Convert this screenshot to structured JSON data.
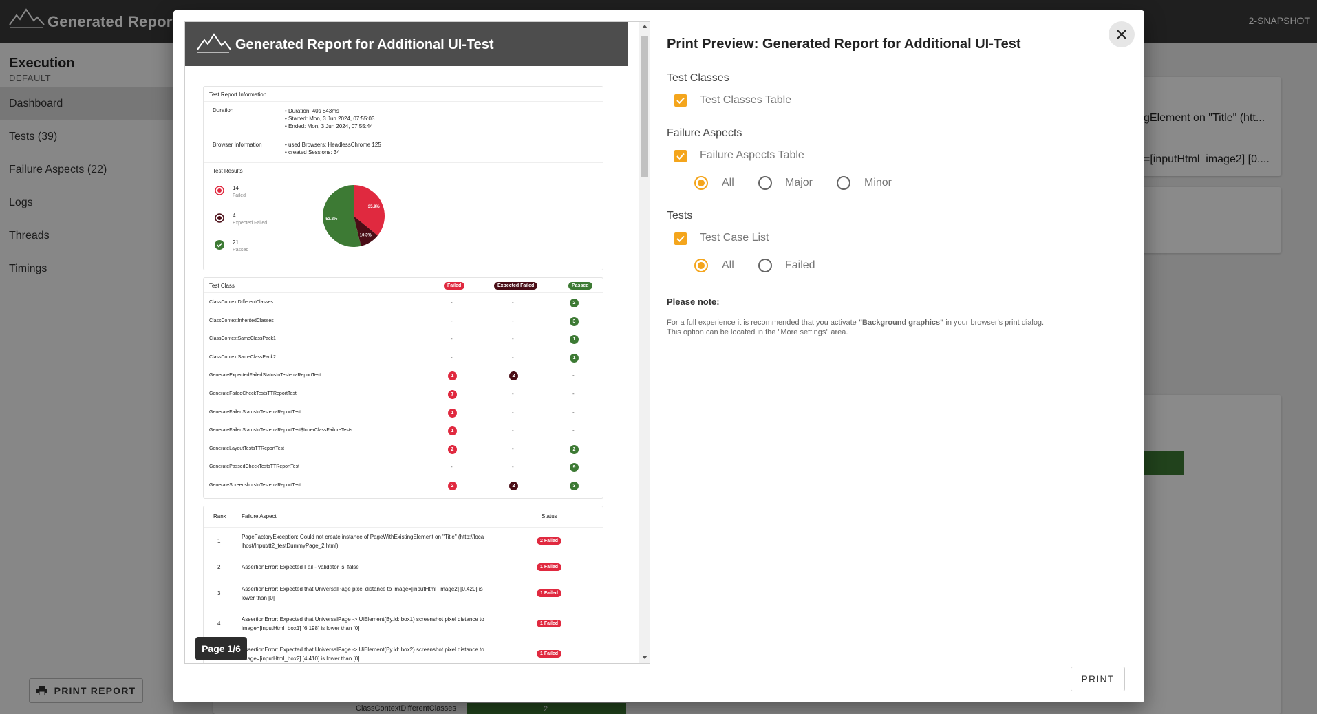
{
  "app": {
    "title": "Generated Report fo",
    "version": "2-SNAPSHOT"
  },
  "sidebar": {
    "execution_title": "Execution",
    "execution_sub": "DEFAULT",
    "items": [
      {
        "label": "Dashboard"
      },
      {
        "label": "Tests (39)"
      },
      {
        "label": "Failure Aspects (22)"
      },
      {
        "label": "Logs"
      },
      {
        "label": "Threads"
      },
      {
        "label": "Timings"
      }
    ],
    "print_button": "PRINT REPORT"
  },
  "background": {
    "text1": "gElement on \"Title\" (htt...",
    "text2": "=[inputHtml_image2] [0....",
    "bottom_label": "ClassContextDifferentClasses",
    "bottom_value": "2"
  },
  "preview": {
    "header_title": "Generated Report for Additional UI-Test",
    "info": {
      "section_title": "Test Report Information",
      "duration_label": "Duration",
      "duration_items": [
        "Duration: 40s 843ms",
        "Started: Mon, 3 Jun 2024, 07:55:03",
        "Ended: Mon, 3 Jun 2024, 07:55:44"
      ],
      "browser_label": "Browser Information",
      "browser_items": [
        "used Browsers: HeadlessChrome 125",
        "created Sessions: 34"
      ]
    },
    "results": {
      "section_title": "Test Results",
      "failed_count": "14",
      "failed_label": "Failed",
      "expected_count": "4",
      "expected_label": "Expected Failed",
      "passed_count": "21",
      "passed_label": "Passed"
    },
    "chart_data": {
      "type": "pie",
      "categories": [
        "Failed",
        "Expected Failed",
        "Passed"
      ],
      "values": [
        35.9,
        10.3,
        53.8
      ],
      "labels": [
        "35.9%",
        "10.3%",
        "53.8%"
      ],
      "colors": [
        "#e0293f",
        "#4a0d16",
        "#3d7a34"
      ]
    },
    "classes_table": {
      "header": "Test Class",
      "col_failed": "Failed",
      "col_expected": "Expected Failed",
      "col_passed": "Passed",
      "rows": [
        {
          "name": "ClassContextDifferentClasses",
          "failed": "-",
          "expected": "-",
          "passed": "2"
        },
        {
          "name": "ClassContextInheritedClasses",
          "failed": "-",
          "expected": "-",
          "passed": "3"
        },
        {
          "name": "ClassContextSameClassPack1",
          "failed": "-",
          "expected": "-",
          "passed": "1"
        },
        {
          "name": "ClassContextSameClassPack2",
          "failed": "-",
          "expected": "-",
          "passed": "1"
        },
        {
          "name": "GenerateExpectedFailedStatusInTesterraReportTest",
          "failed": "1",
          "expected": "2",
          "passed": "-"
        },
        {
          "name": "GenerateFailedCheckTestsTTReportTest",
          "failed": "7",
          "expected": "-",
          "passed": "-"
        },
        {
          "name": "GenerateFailedStatusInTesterraReportTest",
          "failed": "1",
          "expected": "-",
          "passed": "-"
        },
        {
          "name": "GenerateFailedStatusInTesterraReportTest$InnerClassFailureTests",
          "failed": "1",
          "expected": "-",
          "passed": "-"
        },
        {
          "name": "GenerateLayoutTestsTTReportTest",
          "failed": "2",
          "expected": "-",
          "passed": "2"
        },
        {
          "name": "GeneratePassedCheckTestsTTReportTest",
          "failed": "-",
          "expected": "-",
          "passed": "9"
        },
        {
          "name": "GenerateScreenshotsInTesterraReportTest",
          "failed": "2",
          "expected": "2",
          "passed": "3"
        }
      ]
    },
    "aspects_table": {
      "col_rank": "Rank",
      "col_aspect": "Failure Aspect",
      "col_status": "Status",
      "rows": [
        {
          "rank": "1",
          "line1": "PageFactoryException: Could not create instance of PageWithExistingElement on \"Title\" (http://loca",
          "line2": "lhost/Input/tt2_testDummyPage_2.html)",
          "status": "2 Failed"
        },
        {
          "rank": "2",
          "line1": "AssertionError: Expected Fail - validator is: false",
          "line2": "",
          "status": "1 Failed"
        },
        {
          "rank": "3",
          "line1": "AssertionError: Expected that UniversalPage pixel distance to image=[inputHtml_image2] [0.420] is",
          "line2": "lower than [0]",
          "status": "1 Failed"
        },
        {
          "rank": "4",
          "line1": "AssertionError: Expected that UniversalPage -> UiElement(By.id: box1) screenshot pixel distance to",
          "line2": "image=[inputHtml_box1] [6.198] is lower than [0]",
          "status": "1 Failed"
        },
        {
          "rank": "5",
          "line1": "AssertionError: Expected that UniversalPage -> UiElement(By.id: box2) screenshot pixel distance to",
          "line2": "image=[inputHtml_box2] [4.410] is lower than [0]",
          "status": "1 Failed"
        }
      ]
    },
    "page_indicator": "Page 1/6"
  },
  "options": {
    "title": "Print Preview: Generated Report for Additional UI-Test",
    "test_classes_heading": "Test Classes",
    "test_classes_table": "Test Classes Table",
    "failure_aspects_heading": "Failure Aspects",
    "failure_aspects_table": "Failure Aspects Table",
    "fa_all": "All",
    "fa_major": "Major",
    "fa_minor": "Minor",
    "tests_heading": "Tests",
    "test_case_list": "Test Case List",
    "tc_all": "All",
    "tc_failed": "Failed",
    "note_title": "Please note:",
    "note_line1_pre": "For a full experience it is recommended that you activate ",
    "note_line1_bold": "\"Background graphics\"",
    "note_line1_post": " in your browser's print dialog.",
    "note_line2": "This option can be located in the \"More settings\" area.",
    "print_button": "PRINT"
  }
}
